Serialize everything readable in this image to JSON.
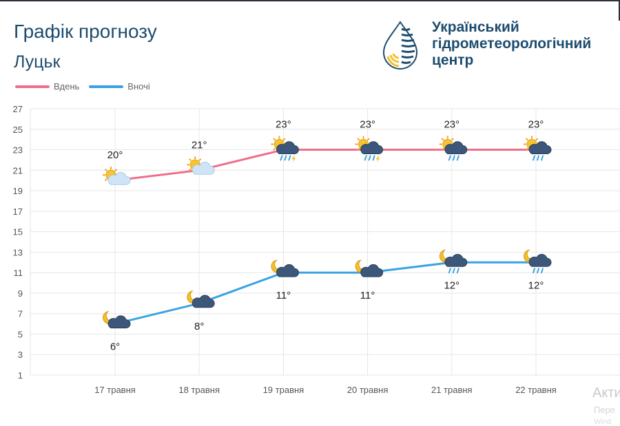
{
  "header": {
    "title": "Графік прогнозу",
    "city": "Луцьк"
  },
  "brand": {
    "line1": "Український",
    "line2": "гідрометеорологічний",
    "line3": "центр",
    "logo_icon": "drop-logo-icon",
    "colors": {
      "navy": "#1d4c6e",
      "yellow": "#f2c12e"
    }
  },
  "watermark": {
    "line1": "Акти",
    "line2": "Пере",
    "line3": "Wind"
  },
  "chart_data": {
    "type": "line",
    "categories": [
      "17 травня",
      "18 травня",
      "19 травня",
      "20 травня",
      "21 травня",
      "22 травня"
    ],
    "series": [
      {
        "name": "Вдень",
        "color": "#f06d8a",
        "values": [
          20,
          21,
          23,
          23,
          23,
          23
        ],
        "labels": [
          "20°",
          "21°",
          "23°",
          "23°",
          "23°",
          "23°"
        ],
        "icons": [
          "sun-cloud-icon",
          "sun-cloud-icon",
          "sun-storm-icon",
          "sun-storm-icon",
          "sun-rain-icon",
          "sun-rain-icon"
        ]
      },
      {
        "name": "Вночі",
        "color": "#3aa3e3",
        "values": [
          6,
          8,
          11,
          11,
          12,
          12
        ],
        "labels": [
          "6°",
          "8°",
          "11°",
          "11°",
          "12°",
          "12°"
        ],
        "icons": [
          "moon-cloud-icon",
          "moon-cloud-icon",
          "moon-cloud-icon",
          "moon-cloud-icon",
          "moon-rain-icon",
          "moon-rain-icon"
        ]
      }
    ],
    "y_ticks": [
      "27",
      "25",
      "23",
      "21",
      "19",
      "17",
      "15",
      "13",
      "11",
      "9",
      "7",
      "5",
      "3",
      "1"
    ],
    "ylim": [
      1,
      27
    ],
    "grid": true,
    "legend_position": "top-left"
  }
}
